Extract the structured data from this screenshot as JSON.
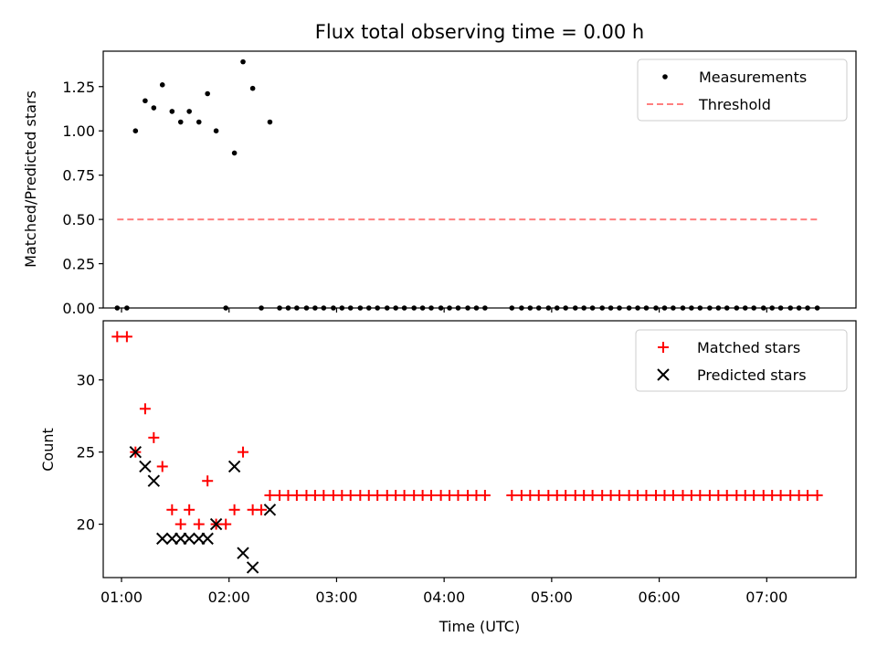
{
  "chart_data": [
    {
      "type": "scatter",
      "title": "Flux total observing time = 0.00 h",
      "xlabel": "",
      "ylabel": "Matched/Predicted stars",
      "xlim": [
        0.83,
        7.83
      ],
      "ylim": [
        0,
        1.45
      ],
      "yticks": [
        0,
        0.25,
        0.5,
        0.75,
        1.0,
        1.25
      ],
      "yticklabels": [
        "0.00",
        "0.25",
        "0.50",
        "0.75",
        "1.00",
        "1.25"
      ],
      "legend_position": "top-right",
      "series": [
        {
          "name": "Measurements",
          "kind": "scatter",
          "marker": "dot",
          "color": "#000000",
          "x": [
            0.96,
            1.05,
            1.13,
            1.22,
            1.3,
            1.38,
            1.47,
            1.55,
            1.63,
            1.72,
            1.8,
            1.88,
            1.97,
            2.05,
            2.13,
            2.22,
            2.3,
            2.38,
            2.47,
            2.55,
            2.63,
            2.72,
            2.8,
            2.88,
            2.97,
            3.05,
            3.13,
            3.22,
            3.3,
            3.38,
            3.47,
            3.55,
            3.63,
            3.72,
            3.8,
            3.88,
            3.97,
            4.05,
            4.13,
            4.22,
            4.3,
            4.38,
            4.63,
            4.72,
            4.8,
            4.88,
            4.97,
            5.05,
            5.13,
            5.22,
            5.3,
            5.38,
            5.47,
            5.55,
            5.63,
            5.72,
            5.8,
            5.88,
            5.97,
            6.05,
            6.13,
            6.22,
            6.3,
            6.38,
            6.47,
            6.55,
            6.63,
            6.72,
            6.8,
            6.88,
            6.97,
            7.05,
            7.13,
            7.22,
            7.3,
            7.38,
            7.47
          ],
          "y": [
            0,
            0,
            1.0,
            1.17,
            1.13,
            1.26,
            1.11,
            1.05,
            1.11,
            1.05,
            1.21,
            1.0,
            0,
            0.875,
            1.39,
            1.24,
            0,
            1.05,
            0,
            0,
            0,
            0,
            0,
            0,
            0,
            0,
            0,
            0,
            0,
            0,
            0,
            0,
            0,
            0,
            0,
            0,
            0,
            0,
            0,
            0,
            0,
            0,
            0,
            0,
            0,
            0,
            0,
            0,
            0,
            0,
            0,
            0,
            0,
            0,
            0,
            0,
            0,
            0,
            0,
            0,
            0,
            0,
            0,
            0,
            0,
            0,
            0,
            0,
            0,
            0,
            0,
            0,
            0,
            0,
            0,
            0,
            0
          ]
        },
        {
          "name": "Threshold",
          "kind": "line",
          "dashed": true,
          "color": "#ff7f7f",
          "x": [
            0.96,
            7.47
          ],
          "y": [
            0.5,
            0.5
          ]
        }
      ]
    },
    {
      "type": "scatter",
      "title": "",
      "xlabel": "Time (UTC)",
      "ylabel": "Count",
      "xlim": [
        0.83,
        7.83
      ],
      "ylim": [
        16.3,
        34.1
      ],
      "xticks": [
        1,
        2,
        3,
        4,
        5,
        6,
        7
      ],
      "xticklabels": [
        "01:00",
        "02:00",
        "03:00",
        "04:00",
        "05:00",
        "06:00",
        "07:00"
      ],
      "yticks": [
        20,
        25,
        30
      ],
      "yticklabels": [
        "20",
        "25",
        "30"
      ],
      "legend_position": "top-right",
      "series": [
        {
          "name": "Matched stars",
          "kind": "scatter",
          "marker": "plus",
          "color": "#ff0000",
          "x": [
            0.96,
            1.05,
            1.13,
            1.22,
            1.3,
            1.38,
            1.47,
            1.55,
            1.63,
            1.72,
            1.8,
            1.88,
            1.97,
            2.05,
            2.13,
            2.22,
            2.3,
            2.38,
            2.47,
            2.55,
            2.63,
            2.72,
            2.8,
            2.88,
            2.97,
            3.05,
            3.13,
            3.22,
            3.3,
            3.38,
            3.47,
            3.55,
            3.63,
            3.72,
            3.8,
            3.88,
            3.97,
            4.05,
            4.13,
            4.22,
            4.3,
            4.38,
            4.63,
            4.72,
            4.8,
            4.88,
            4.97,
            5.05,
            5.13,
            5.22,
            5.3,
            5.38,
            5.47,
            5.55,
            5.63,
            5.72,
            5.8,
            5.88,
            5.97,
            6.05,
            6.13,
            6.22,
            6.3,
            6.38,
            6.47,
            6.55,
            6.63,
            6.72,
            6.8,
            6.88,
            6.97,
            7.05,
            7.13,
            7.22,
            7.3,
            7.38,
            7.47
          ],
          "y": [
            33,
            33,
            25,
            28,
            26,
            24,
            21,
            20,
            21,
            20,
            23,
            20,
            20,
            21,
            25,
            21,
            21,
            22,
            22,
            22,
            22,
            22,
            22,
            22,
            22,
            22,
            22,
            22,
            22,
            22,
            22,
            22,
            22,
            22,
            22,
            22,
            22,
            22,
            22,
            22,
            22,
            22,
            22,
            22,
            22,
            22,
            22,
            22,
            22,
            22,
            22,
            22,
            22,
            22,
            22,
            22,
            22,
            22,
            22,
            22,
            22,
            22,
            22,
            22,
            22,
            22,
            22,
            22,
            22,
            22,
            22,
            22,
            22,
            22,
            22,
            22,
            22
          ]
        },
        {
          "name": "Predicted stars",
          "kind": "scatter",
          "marker": "x",
          "color": "#000000",
          "x": [
            1.13,
            1.22,
            1.3,
            1.38,
            1.47,
            1.55,
            1.63,
            1.72,
            1.8,
            1.88,
            2.05,
            2.13,
            2.22,
            2.38
          ],
          "y": [
            25,
            24,
            23,
            19,
            19,
            19,
            19,
            19,
            19,
            20,
            24,
            18,
            17,
            21
          ]
        }
      ]
    }
  ]
}
